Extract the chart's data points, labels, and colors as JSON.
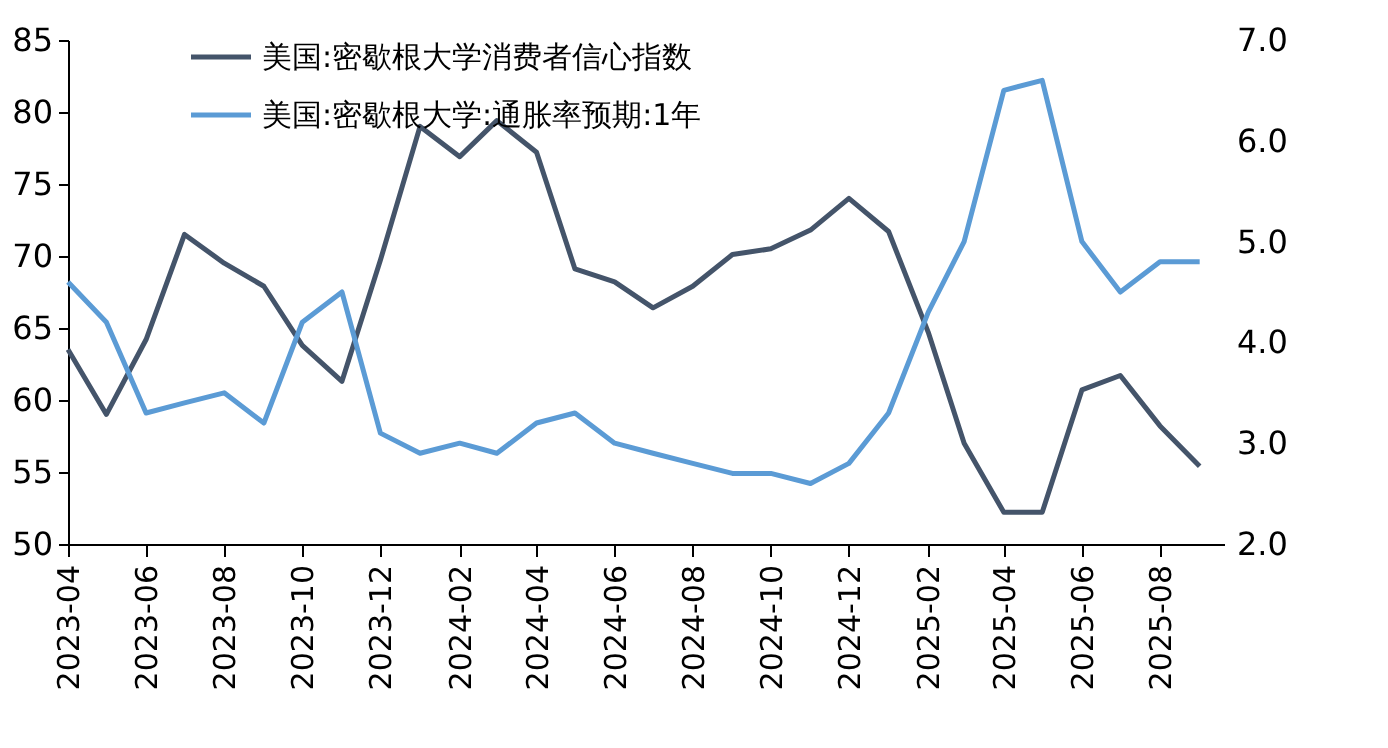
{
  "chart_data": {
    "type": "line",
    "x": [
      "2023-04",
      "2023-05",
      "2023-06",
      "2023-07",
      "2023-08",
      "2023-09",
      "2023-10",
      "2023-11",
      "2023-12",
      "2024-01",
      "2024-02",
      "2024-03",
      "2024-04",
      "2024-05",
      "2024-06",
      "2024-07",
      "2024-08",
      "2024-09",
      "2024-10",
      "2024-11",
      "2024-12",
      "2025-01",
      "2025-02",
      "2025-03",
      "2025-04",
      "2025-05",
      "2025-06",
      "2025-07",
      "2025-08",
      "2025-09"
    ],
    "series": [
      {
        "name": "美国:密歇根大学消费者信心指数",
        "color": "#44546a",
        "values": [
          63.5,
          59.0,
          64.2,
          71.5,
          69.5,
          67.9,
          63.8,
          61.3,
          69.7,
          79.0,
          76.9,
          79.4,
          77.2,
          69.1,
          68.2,
          66.4,
          67.9,
          70.1,
          70.5,
          71.8,
          74.0,
          71.7,
          64.7,
          57.0,
          52.2,
          52.2,
          60.7,
          61.7,
          58.2,
          55.4
        ]
      },
      {
        "name": "美国:密歇根大学:通胀率预期:1年",
        "color": "#5b9bd5",
        "axis": "y2",
        "values": [
          4.6,
          4.2,
          3.3,
          3.4,
          3.5,
          3.2,
          4.2,
          4.5,
          3.1,
          2.9,
          3.0,
          2.9,
          3.2,
          3.3,
          3.0,
          2.9,
          2.8,
          2.7,
          2.7,
          2.6,
          2.8,
          3.3,
          4.3,
          5.0,
          6.5,
          6.6,
          5.0,
          4.5,
          4.8,
          4.8
        ]
      }
    ],
    "xlim": [
      "2023-04",
      "2025-09-20"
    ],
    "xticks": [
      {
        "value": "2023-04",
        "label": "2023-04"
      },
      {
        "value": "2023-06",
        "label": "2023-06"
      },
      {
        "value": "2023-08",
        "label": "2023-08"
      },
      {
        "value": "2023-10",
        "label": "2023-10"
      },
      {
        "value": "2023-12",
        "label": "2023-12"
      },
      {
        "value": "2024-02",
        "label": "2024-02"
      },
      {
        "value": "2024-04",
        "label": "2024-04"
      },
      {
        "value": "2024-06",
        "label": "2024-06"
      },
      {
        "value": "2024-08",
        "label": "2024-08"
      },
      {
        "value": "2024-10",
        "label": "2024-10"
      },
      {
        "value": "2024-12",
        "label": "2024-12"
      },
      {
        "value": "2025-02",
        "label": "2025-02"
      },
      {
        "value": "2025-04",
        "label": "2025-04"
      },
      {
        "value": "2025-06",
        "label": "2025-06"
      },
      {
        "value": "2025-08",
        "label": "2025-08"
      }
    ],
    "ylim": [
      50,
      85
    ],
    "yticks": [
      50,
      55,
      60,
      65,
      70,
      75,
      80,
      85
    ],
    "y2lim": [
      2.0,
      7.0
    ],
    "y2ticks": [
      {
        "value": 2,
        "label": "2.0"
      },
      {
        "value": 3,
        "label": "3.0"
      },
      {
        "value": 4,
        "label": "4.0"
      },
      {
        "value": 5,
        "label": "5.0"
      },
      {
        "value": 6,
        "label": "6.0"
      },
      {
        "value": 7,
        "label": "7.0"
      }
    ],
    "legend": "top",
    "grid": false,
    "marker": "none",
    "line_style": "solid"
  }
}
